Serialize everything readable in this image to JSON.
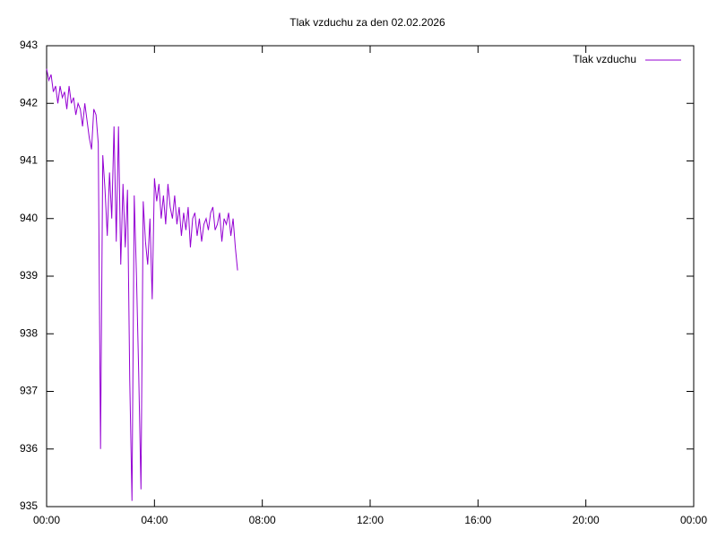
{
  "chart_data": {
    "type": "line",
    "title": "Tlak vzduchu za den 02.02.2026",
    "x": [
      0,
      5,
      10,
      15,
      20,
      25,
      30,
      35,
      40,
      45,
      50,
      55,
      60,
      65,
      70,
      75,
      80,
      85,
      90,
      95,
      100,
      105,
      110,
      115,
      120,
      125,
      130,
      135,
      140,
      145,
      150,
      155,
      160,
      165,
      170,
      175,
      180,
      185,
      190,
      195,
      200,
      205,
      210,
      215,
      220,
      225,
      230,
      235,
      240,
      245,
      250,
      255,
      260,
      265,
      270,
      275,
      280,
      285,
      290,
      295,
      300,
      305,
      310,
      315,
      320,
      325,
      330,
      335,
      340,
      345,
      350,
      355,
      360,
      365,
      370,
      375,
      380,
      385,
      390,
      395,
      400,
      405,
      410,
      415,
      420,
      425
    ],
    "series": [
      {
        "name": "Tlak vzduchu",
        "color": "#9400d3",
        "values": [
          942.6,
          942.4,
          942.5,
          942.2,
          942.3,
          942.0,
          942.3,
          942.1,
          942.2,
          941.9,
          942.3,
          942.0,
          942.1,
          941.8,
          942.0,
          941.9,
          941.6,
          942.0,
          941.7,
          941.4,
          941.2,
          941.9,
          941.8,
          941.3,
          936.0,
          941.1,
          940.5,
          939.7,
          940.8,
          940.0,
          941.6,
          939.6,
          941.6,
          939.2,
          940.6,
          939.5,
          940.5,
          937.2,
          935.1,
          940.4,
          939.0,
          937.3,
          935.3,
          940.3,
          939.6,
          939.2,
          940.0,
          938.6,
          940.7,
          940.3,
          940.6,
          940.0,
          940.4,
          939.9,
          940.6,
          940.2,
          940.0,
          940.4,
          939.9,
          940.2,
          939.7,
          940.1,
          939.8,
          940.2,
          939.5,
          940.0,
          940.1,
          939.7,
          940.0,
          939.6,
          939.9,
          940.0,
          939.8,
          940.1,
          940.2,
          939.8,
          939.9,
          940.1,
          939.6,
          940.0,
          939.9,
          940.1,
          939.7,
          940.0,
          939.5,
          939.1
        ]
      }
    ],
    "xlim": [
      0,
      1440
    ],
    "xticks": [
      {
        "value": 0,
        "label": "00:00"
      },
      {
        "value": 240,
        "label": "04:00"
      },
      {
        "value": 480,
        "label": "08:00"
      },
      {
        "value": 720,
        "label": "12:00"
      },
      {
        "value": 960,
        "label": "16:00"
      },
      {
        "value": 1200,
        "label": "20:00"
      },
      {
        "value": 1440,
        "label": "00:00"
      }
    ],
    "ylim": [
      935,
      943
    ],
    "yticks": [
      935,
      936,
      937,
      938,
      939,
      940,
      941,
      942,
      943
    ],
    "legend": "top-right"
  }
}
